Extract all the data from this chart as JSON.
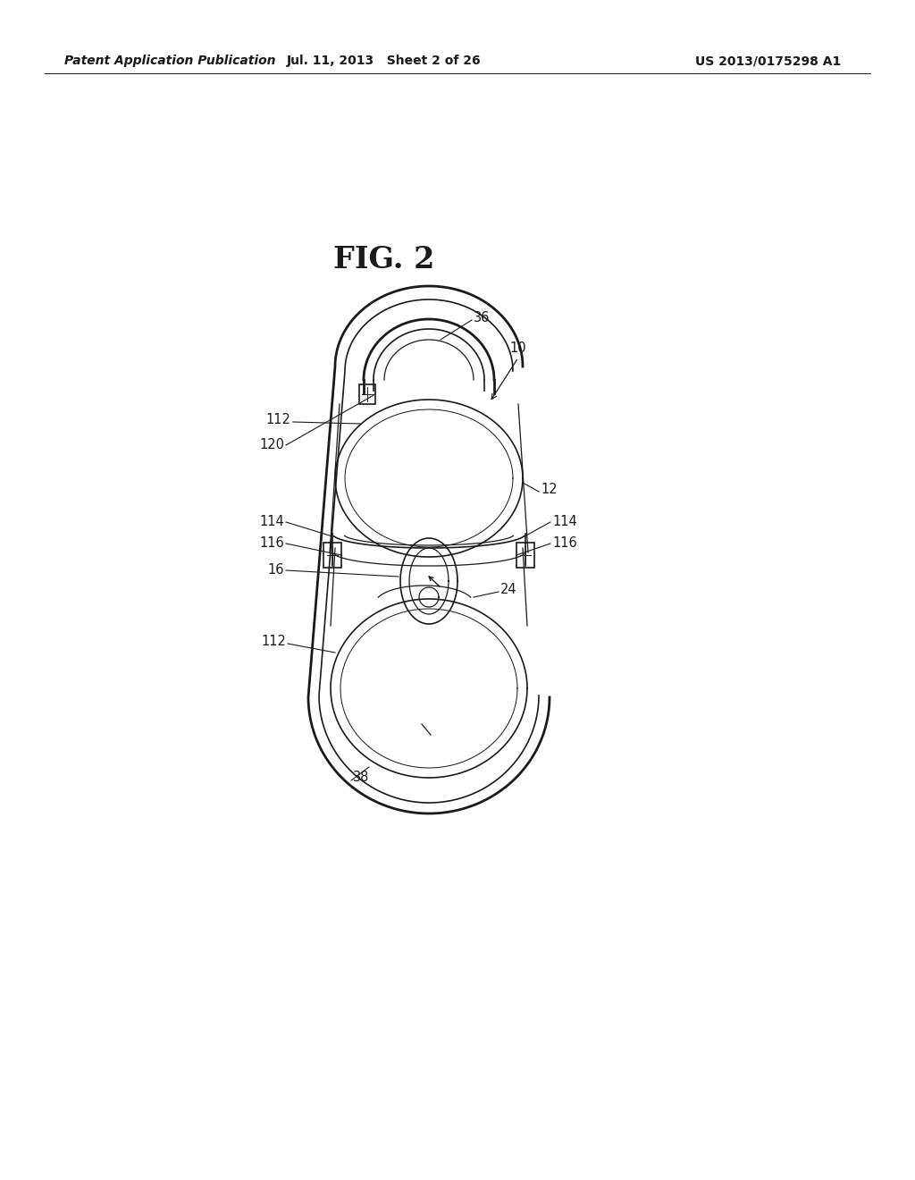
{
  "fig_label": "FIG. 2",
  "header_left": "Patent Application Publication",
  "header_center": "Jul. 11, 2013   Sheet 2 of 26",
  "header_right": "US 2013/0175298 A1",
  "bg_color": "#ffffff",
  "line_color": "#1a1a1a",
  "label_fontsize": 10.5,
  "header_fontsize": 10,
  "fig_label_fontsize": 24
}
